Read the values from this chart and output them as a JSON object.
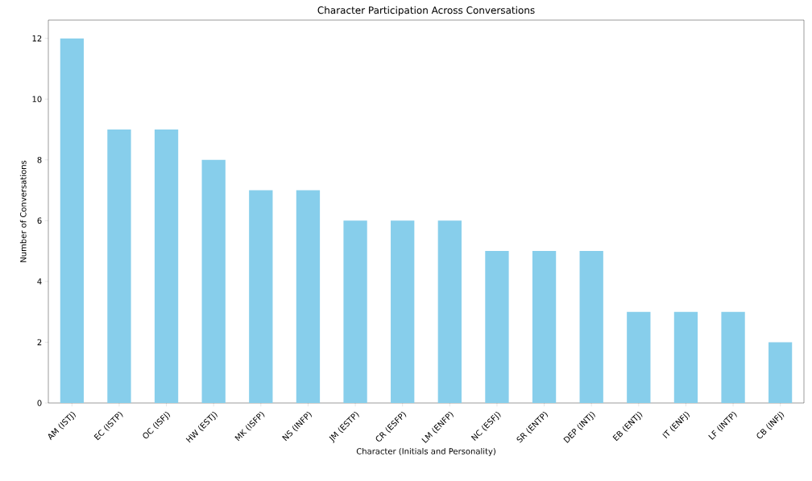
{
  "chart_data": {
    "type": "bar",
    "title": "Character Participation Across Conversations",
    "xlabel": "Character (Initials and Personality)",
    "ylabel": "Number of Conversations",
    "categories": [
      "AM (ISTJ)",
      "EC (ISTP)",
      "OC (ISFJ)",
      "HW (ESTJ)",
      "MK (ISFP)",
      "NS (INFP)",
      "JM (ESTP)",
      "CR (ESFP)",
      "LM (ENFP)",
      "NC (ESFJ)",
      "SR (ENTP)",
      "DEP (INTJ)",
      "EB (ENTJ)",
      "IT (ENFJ)",
      "LF (INTP)",
      "CB (INFJ)"
    ],
    "values": [
      12,
      9,
      9,
      8,
      7,
      7,
      6,
      6,
      6,
      5,
      5,
      5,
      3,
      3,
      3,
      2
    ],
    "color": "#87ceeb",
    "ylim": [
      0,
      12.6
    ],
    "yticks": [
      0,
      2,
      4,
      6,
      8,
      10,
      12
    ]
  }
}
